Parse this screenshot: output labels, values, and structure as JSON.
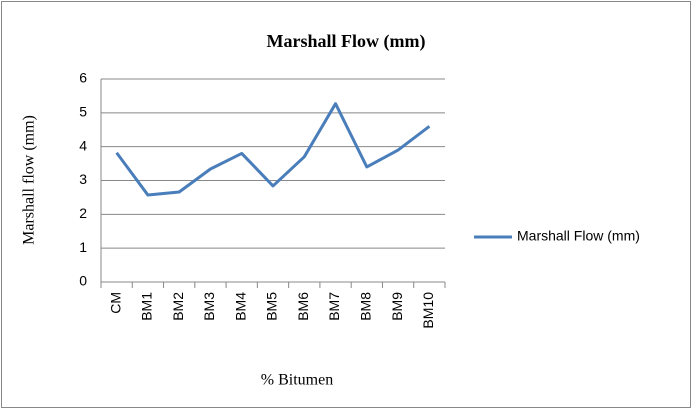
{
  "chart_data": {
    "type": "line",
    "title": "Marshall Flow (mm)",
    "x_label": "% Bitumen",
    "y_label": "Marshall flow (mm)",
    "categories": [
      "CM",
      "BM1",
      "BM2",
      "BM3",
      "BM4",
      "BM5",
      "BM6",
      "BM7",
      "BM8",
      "BM9",
      "BM10"
    ],
    "series": [
      {
        "name": "Marshall Flow (mm)",
        "color": "#4a7ebb",
        "values": [
          3.82,
          2.57,
          2.66,
          3.34,
          3.8,
          2.84,
          3.7,
          5.27,
          3.4,
          3.9,
          4.6
        ]
      }
    ],
    "ylim": [
      0,
      6
    ],
    "yticks": [
      0,
      1,
      2,
      3,
      4,
      5,
      6
    ],
    "grid": true,
    "legend": "right"
  }
}
